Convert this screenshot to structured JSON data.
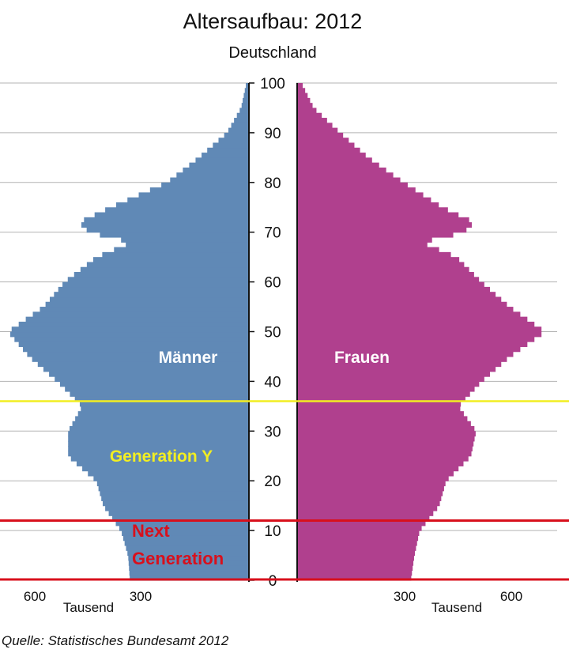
{
  "chart_data": {
    "type": "bar",
    "orientation": "horizontal-population-pyramid",
    "title": "Altersaufbau: 2012",
    "subtitle": "Deutschland",
    "y_ticks": [
      "0",
      "10",
      "20",
      "30",
      "40",
      "50",
      "60",
      "70",
      "80",
      "90",
      "100"
    ],
    "x_ticks": [
      "600",
      "300",
      "300",
      "600"
    ],
    "x_unit": "Tausend",
    "x_max": 700,
    "y_range": [
      0,
      100
    ],
    "grid": true,
    "colors": {
      "maenner": "#6089b6",
      "frauen": "#b0408e",
      "generation_y": "#f2ee22",
      "next_generation": "#d8101c"
    },
    "series": [
      {
        "name": "Männer",
        "ages": [
          0,
          5,
          10,
          15,
          20,
          25,
          30,
          35,
          40,
          45,
          50,
          55,
          60,
          65,
          68,
          70,
          72,
          75,
          80,
          85,
          90,
          95,
          100
        ],
        "values": [
          335,
          340,
          360,
          410,
          430,
          510,
          510,
          470,
          540,
          620,
          680,
          580,
          520,
          430,
          330,
          450,
          480,
          390,
          230,
          140,
          60,
          20,
          5
        ]
      },
      {
        "name": "Frauen",
        "ages": [
          0,
          5,
          10,
          15,
          20,
          25,
          30,
          35,
          40,
          45,
          50,
          55,
          60,
          65,
          68,
          70,
          72,
          75,
          80,
          85,
          90,
          95,
          100
        ],
        "values": [
          320,
          330,
          345,
          400,
          420,
          490,
          505,
          455,
          520,
          600,
          700,
          600,
          520,
          450,
          350,
          470,
          500,
          410,
          300,
          200,
          120,
          45,
          10
        ]
      }
    ],
    "annotations": [
      {
        "label": "Generation Y",
        "age": 36
      },
      {
        "label": "Next Generation",
        "age_from": 0,
        "age_to": 12
      }
    ]
  },
  "source": "Quelle: Statistisches Bundesamt 2012"
}
